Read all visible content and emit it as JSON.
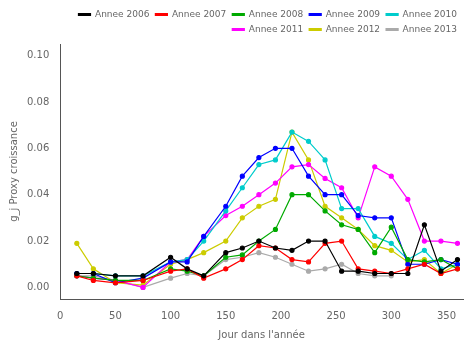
{
  "chart_data": {
    "type": "line",
    "xlabel": "Jour dans l'année",
    "ylabel": "g_j Proxy croissance",
    "xlim": [
      0,
      365
    ],
    "ylim": [
      -0.005,
      0.105
    ],
    "xticks": [
      0,
      50,
      100,
      150,
      200,
      250,
      300,
      350
    ],
    "yticks": [
      {
        "value": 0,
        "label": "0.00"
      },
      0.02,
      0.04,
      0.06,
      0.08,
      {
        "value": 0.1,
        "label": "0.10"
      }
    ],
    "grid": false,
    "legend": "upper right",
    "marker": "circle",
    "series": [
      {
        "name": "Annee 2006",
        "color": "#000000",
        "x": [
          15,
          30,
          50,
          75,
          100,
          115,
          130,
          150,
          165,
          180,
          195,
          210,
          225,
          240,
          255,
          270,
          285,
          300,
          315,
          330,
          345,
          360
        ],
        "values": [
          0.006,
          0.006,
          0.005,
          0.005,
          0.013,
          0.008,
          0.005,
          0.015,
          0.017,
          0.02,
          0.017,
          0.016,
          0.02,
          0.02,
          0.007,
          0.007,
          0.006,
          0.006,
          0.006,
          0.027,
          0.007,
          0.012
        ]
      },
      {
        "name": "Annee 2007",
        "color": "#ff0000",
        "x": [
          15,
          30,
          50,
          75,
          100,
          115,
          130,
          150,
          165,
          180,
          195,
          210,
          225,
          240,
          255,
          270,
          285,
          300,
          315,
          330,
          345,
          360
        ],
        "values": [
          0.005,
          0.003,
          0.002,
          0.003,
          0.007,
          0.008,
          0.004,
          0.008,
          0.012,
          0.018,
          0.017,
          0.012,
          0.011,
          0.019,
          0.02,
          0.008,
          0.007,
          0.006,
          0.008,
          0.01,
          0.006,
          0.008
        ]
      },
      {
        "name": "Annee 2008",
        "color": "#00aa00",
        "x": [
          15,
          30,
          50,
          75,
          100,
          115,
          130,
          150,
          165,
          180,
          195,
          210,
          225,
          240,
          255,
          270,
          285,
          300,
          315,
          330,
          345,
          360
        ],
        "values": [
          0.005,
          0.004,
          0.003,
          0.003,
          0.008,
          0.007,
          0.005,
          0.013,
          0.014,
          0.02,
          0.025,
          0.04,
          0.04,
          0.033,
          0.027,
          0.025,
          0.015,
          0.026,
          0.012,
          0.011,
          0.012,
          0.008
        ]
      },
      {
        "name": "Annee 2009",
        "color": "#0000ff",
        "x": [
          15,
          30,
          50,
          75,
          100,
          115,
          130,
          150,
          165,
          180,
          195,
          210,
          225,
          240,
          255,
          270,
          285,
          300,
          315,
          330,
          345,
          360
        ],
        "values": [
          0.006,
          0.006,
          0.002,
          0.004,
          0.011,
          0.011,
          0.022,
          0.035,
          0.048,
          0.056,
          0.06,
          0.06,
          0.048,
          0.04,
          0.04,
          0.031,
          0.03,
          0.03,
          0.01,
          0.01,
          0.012,
          0.01
        ]
      },
      {
        "name": "Annee 2010",
        "color": "#00cccc",
        "x": [
          15,
          30,
          50,
          75,
          100,
          115,
          130,
          150,
          165,
          180,
          195,
          210,
          225,
          240,
          255,
          270,
          285,
          300,
          315,
          330,
          345,
          360
        ],
        "values": [
          0.006,
          0.006,
          0.005,
          0.005,
          0.011,
          0.012,
          0.02,
          0.033,
          0.043,
          0.053,
          0.055,
          0.067,
          0.063,
          0.055,
          0.034,
          0.034,
          0.022,
          0.019,
          0.012,
          0.016,
          0.008,
          0.01
        ]
      },
      {
        "name": "Annee 2011",
        "color": "#ff00ff",
        "x": [
          15,
          30,
          50,
          75,
          100,
          115,
          130,
          150,
          165,
          180,
          195,
          210,
          225,
          240,
          255,
          270,
          285,
          300,
          315,
          330,
          345,
          360
        ],
        "values": [
          0.005,
          0.004,
          0.003,
          0.0,
          0.011,
          0.012,
          0.022,
          0.031,
          0.035,
          0.04,
          0.045,
          0.052,
          0.053,
          0.047,
          0.043,
          0.03,
          0.052,
          0.048,
          0.038,
          0.02,
          0.02,
          0.019
        ]
      },
      {
        "name": "Annee 2012",
        "color": "#cccc00",
        "x": [
          15,
          30,
          50,
          75,
          100,
          115,
          130,
          150,
          165,
          180,
          195,
          210,
          225,
          240,
          255,
          270,
          285,
          300,
          315,
          330,
          345,
          360
        ],
        "values": [
          0.019,
          0.008,
          0.002,
          0.001,
          0.01,
          0.012,
          0.015,
          0.02,
          0.03,
          0.035,
          0.038,
          0.067,
          0.055,
          0.035,
          0.03,
          0.025,
          0.018,
          0.016,
          0.011,
          0.012,
          0.006,
          0.01
        ]
      },
      {
        "name": "Annee 2013",
        "color": "#aaaaaa",
        "x": [
          15,
          30,
          50,
          75,
          100,
          115,
          130,
          150,
          165,
          180,
          195,
          210,
          225,
          240,
          255,
          270,
          285,
          300
        ],
        "values": [
          0.005,
          0.005,
          0.003,
          0.0,
          0.004,
          0.006,
          0.005,
          0.012,
          0.013,
          0.015,
          0.013,
          0.01,
          0.007,
          0.008,
          0.01,
          0.006,
          0.005,
          0.005
        ]
      }
    ]
  }
}
